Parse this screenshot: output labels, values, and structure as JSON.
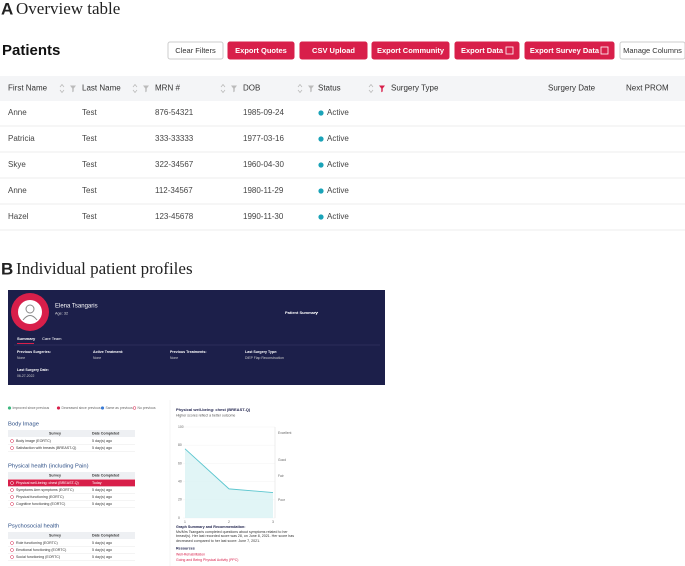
{
  "panel_a": {
    "label": "A",
    "title": "Overview table",
    "heading": "Patients",
    "buttons": [
      "Clear Filters",
      "Export Quotes",
      "CSV Upload",
      "Export Community",
      "Export Data",
      "Export Survey Data",
      "Manage Columns"
    ],
    "columns": [
      "First Name",
      "Last Name",
      "MRN #",
      "DOB",
      "Status",
      "Surgery Type",
      "Surgery Date",
      "Next PROM"
    ],
    "rows": [
      [
        "Anne",
        "Test",
        "876-54321",
        "1985-09-24",
        "Active"
      ],
      [
        "Patricia",
        "Test",
        "333-33333",
        "1977-03-16",
        "Active"
      ],
      [
        "Skye",
        "Test",
        "322-34567",
        "1960-04-30",
        "Active"
      ],
      [
        "Anne",
        "Test",
        "112-34567",
        "1980-11-29",
        "Active"
      ],
      [
        "Hazel",
        "Test",
        "123-45678",
        "1990-11-30",
        "Active"
      ]
    ]
  },
  "panel_b": {
    "label": "B",
    "title": "Individual patient profiles",
    "patient": {
      "name": "Elena Tsangaris",
      "age": "Age: 32",
      "menu": "Patient Summary"
    },
    "tabs": [
      "Summary",
      "Care Team"
    ],
    "fields": [
      {
        "label": "Previous Surgeries:",
        "value": "None"
      },
      {
        "label": "Active Treatment:",
        "value": "None"
      },
      {
        "label": "Previous Treatments:",
        "value": "None"
      },
      {
        "label": "Last Surgery Type:",
        "value": "DIEP Flap Reconstruction"
      },
      {
        "label": "Last Surgery Date:",
        "value": "06-27-2022"
      }
    ],
    "legend": [
      "Improved since previous",
      "Decreased since previous",
      "Same as previous",
      "No previous"
    ],
    "sections": [
      {
        "title": "Body Image",
        "columns": [
          "Survey",
          "Date Completed"
        ],
        "rows": [
          [
            "Body image (EORTC)",
            "5 day(s) ago"
          ],
          [
            "Satisfaction with breasts (BREAST-Q)",
            "5 day(s) ago"
          ]
        ]
      },
      {
        "title": "Physical health (including Pain)",
        "columns": [
          "Survey",
          "Date Completed"
        ],
        "rows": [
          [
            "Physical well-being: chest (BREAST-Q)",
            "Today"
          ],
          [
            "Symptoms Arm symptoms (EORTC)",
            "5 day(s) ago"
          ],
          [
            "Physical functioning (EORTC)",
            "5 day(s) ago"
          ],
          [
            "Cognitive functioning (EORTC)",
            "5 day(s) ago"
          ]
        ]
      },
      {
        "title": "Psychosocial health",
        "columns": [
          "Survey",
          "Date Completed"
        ],
        "rows": [
          [
            "Role functioning (EORTC)",
            "5 day(s) ago"
          ],
          [
            "Emotional functioning (EORTC)",
            "5 day(s) ago"
          ],
          [
            "Social functioning (EORTC)",
            "5 day(s) ago"
          ]
        ]
      }
    ],
    "chart": {
      "type": "line",
      "title": "Physical well-being: chest (BREAST-Q)",
      "subtitle": "Higher scores reflect a better outcome",
      "categories": [
        "1",
        "2",
        "3"
      ],
      "values": [
        76,
        32,
        28
      ],
      "ylim": [
        0,
        100
      ],
      "yticks": [
        0,
        20,
        40,
        60,
        80,
        100
      ],
      "bands": [
        "Excellent",
        "Good",
        "Fair",
        "Poor"
      ],
      "summary_title": "Graph Summary and Recommendation:",
      "summary": "Ms/Mrs Tsangaris completed questions about symptoms related to her breast(s). Her last recorded score was 28, on June 8, 2021. Her score has decreased compared to her last score: June 7, 2021.",
      "resources_title": "Resources",
      "resources": [
        "Well-Rehabilitation",
        "Going and Being Physical Activity (PPC)"
      ]
    }
  }
}
